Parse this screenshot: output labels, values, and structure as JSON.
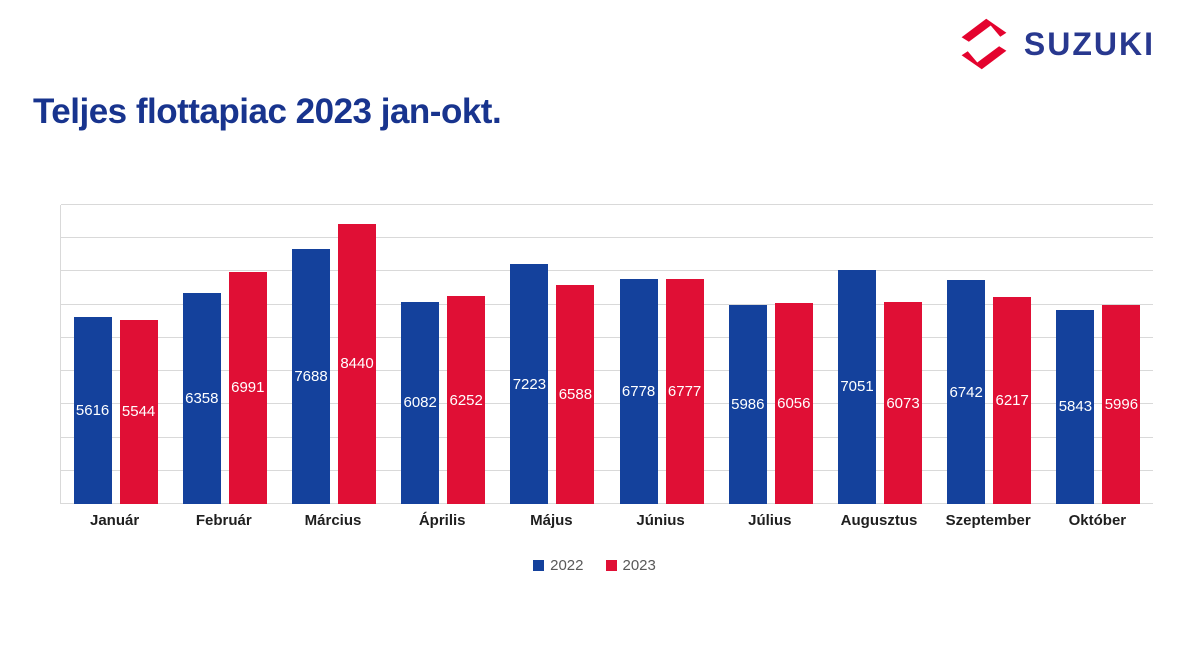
{
  "logo": {
    "brand": "SUZUKI"
  },
  "header": {
    "title": "Teljes flottapiac 2023 jan-okt."
  },
  "chart_data": {
    "type": "bar",
    "title": "Teljes flottapiac 2023 jan-okt.",
    "categories": [
      "Január",
      "Február",
      "Március",
      "Április",
      "Május",
      "Június",
      "Július",
      "Augusztus",
      "Szeptember",
      "Október"
    ],
    "series": [
      {
        "name": "2022",
        "color": "#14419c",
        "values": [
          5616,
          6358,
          7688,
          6082,
          7223,
          6778,
          5986,
          7051,
          6742,
          5843
        ]
      },
      {
        "name": "2023",
        "color": "#e00f35",
        "values": [
          5544,
          6991,
          8440,
          6252,
          6588,
          6777,
          6056,
          6073,
          6217,
          5996
        ]
      }
    ],
    "ylim": [
      0,
      9000
    ],
    "gridline_step": 1000,
    "grid": true,
    "y_axis_labels_visible": false,
    "legend_position": "bottom-center",
    "data_labels": "inside-center"
  },
  "colors": {
    "title_blue": "#18348e",
    "logo_blue": "#28388f",
    "logo_red": "#e4032e",
    "bar_2022": "#14419c",
    "bar_2023": "#e00f35",
    "gridline": "#d9d9d9",
    "month_label": "#1f1f1f",
    "legend_text": "#595959",
    "data_label": "#ffffff",
    "background": "#ffffff"
  }
}
